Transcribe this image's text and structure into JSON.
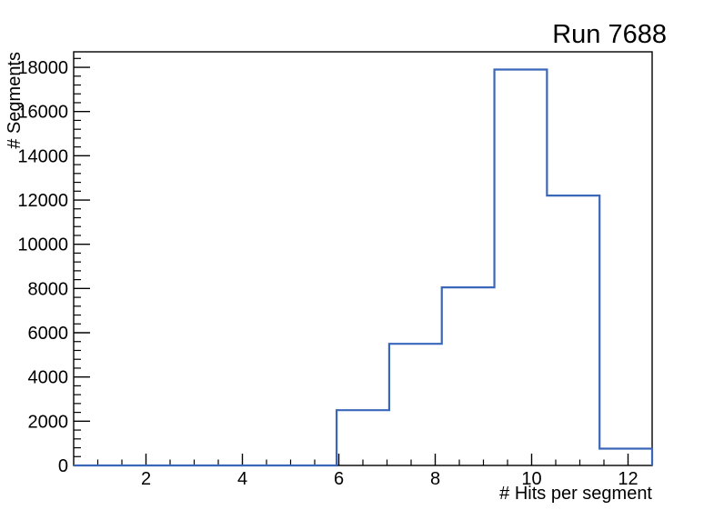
{
  "window": {
    "background_color": "#ffffff"
  },
  "chart_data": {
    "type": "bar",
    "subtype": "step-histogram",
    "title": "Run 7688",
    "xlabel": "# Hits per segment",
    "ylabel": "# Segments",
    "xlim": [
      0.5,
      12.5
    ],
    "ylim": [
      0,
      18700
    ],
    "n_bins": 11,
    "bin_edges": [
      0.5,
      1.5909,
      2.6818,
      3.7727,
      4.8636,
      5.9545,
      7.0455,
      8.1364,
      9.2273,
      10.3182,
      11.4091,
      12.5
    ],
    "counts": [
      0,
      0,
      0,
      0,
      0,
      2500,
      5500,
      8050,
      17900,
      12200,
      760
    ],
    "x_ticks": {
      "major_values": [
        2,
        4,
        6,
        8,
        10,
        12
      ],
      "major_labels": [
        "2",
        "4",
        "6",
        "8",
        "10",
        "12"
      ],
      "minor_step": 0.5
    },
    "y_ticks": {
      "major_step": 2000,
      "major_values": [
        0,
        2000,
        4000,
        6000,
        8000,
        10000,
        12000,
        14000,
        16000,
        18000
      ],
      "major_labels": [
        "0",
        "2000",
        "4000",
        "6000",
        "8000",
        "10000",
        "12000",
        "14000",
        "16000",
        "18000"
      ],
      "minor_step": 400
    },
    "line_color": "#3a67b9",
    "axis_color": "#000000",
    "grid": false,
    "legend": null
  }
}
